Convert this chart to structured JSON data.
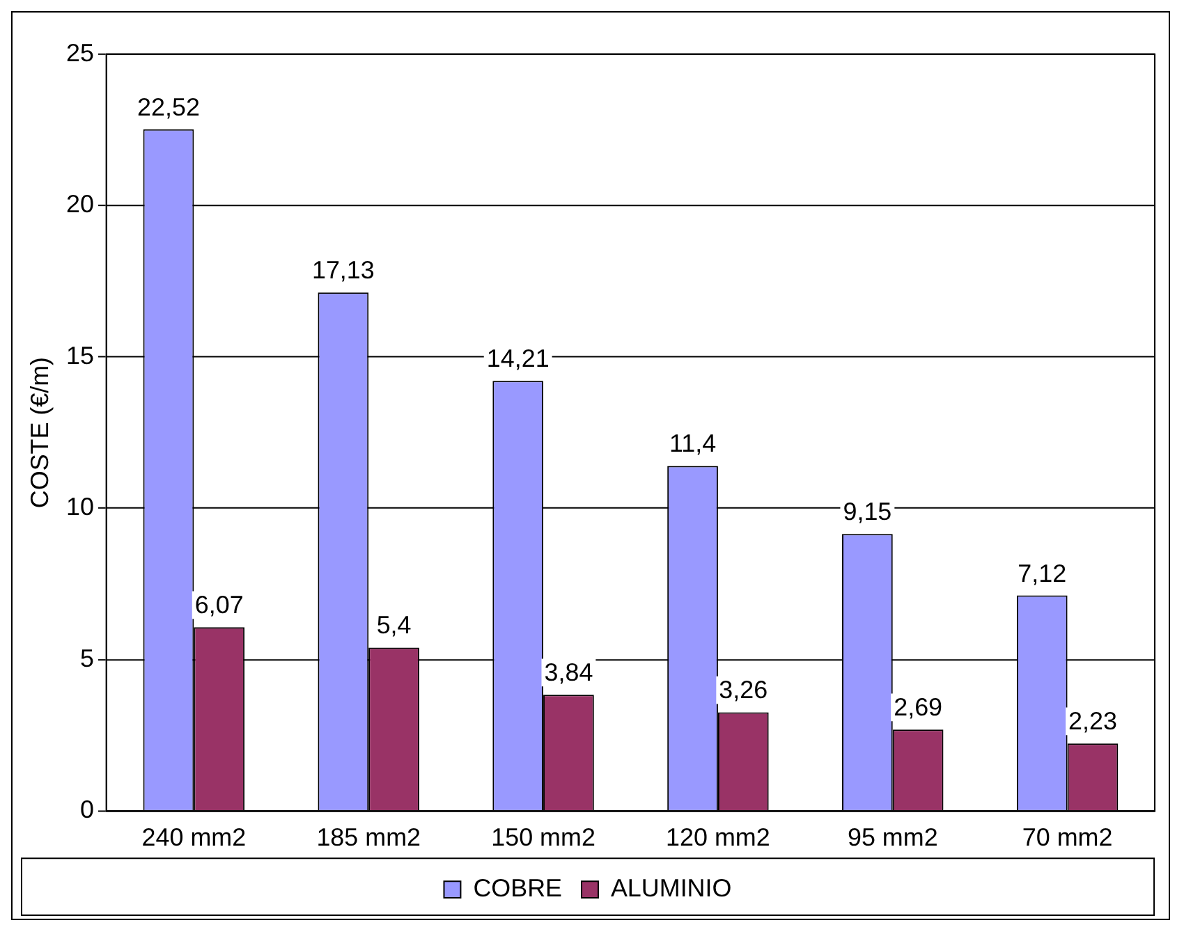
{
  "chart_data": {
    "type": "bar",
    "ylabel": "COSTE (€/m)",
    "categories": [
      "240 mm2",
      "185 mm2",
      "150 mm2",
      "120 mm2",
      "95 mm2",
      "70 mm2"
    ],
    "series": [
      {
        "name": "COBRE",
        "color": "#9999ff",
        "values": [
          22.52,
          17.13,
          14.21,
          11.4,
          9.15,
          7.12
        ],
        "value_labels": [
          "22,52",
          "17,13",
          "14,21",
          "11,4",
          "9,15",
          "7,12"
        ]
      },
      {
        "name": "ALUMINIO",
        "color": "#993366",
        "values": [
          6.07,
          5.4,
          3.84,
          3.26,
          2.69,
          2.23
        ],
        "value_labels": [
          "6,07",
          "5,4",
          "3,84",
          "3,26",
          "2,69",
          "2,23"
        ]
      }
    ],
    "ylim": [
      0,
      25
    ],
    "yticks": [
      0,
      5,
      10,
      15,
      20,
      25
    ],
    "grid": "y",
    "legend": "bottom"
  }
}
